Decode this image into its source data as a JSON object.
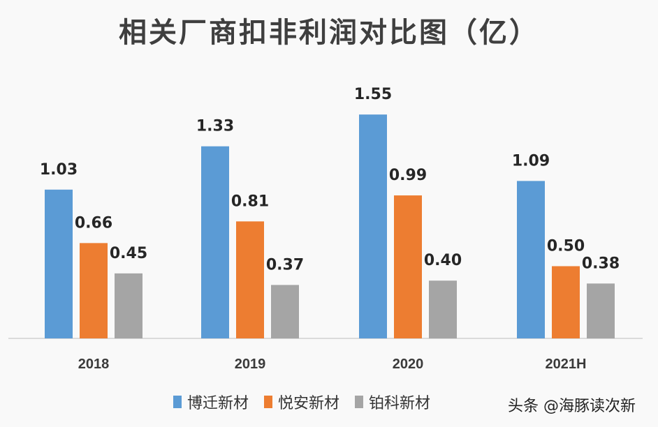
{
  "chart_data": {
    "type": "bar",
    "title": "相关厂商扣非利润对比图（亿）",
    "xlabel": "",
    "ylabel": "",
    "ylim": [
      0,
      1.6
    ],
    "grid": false,
    "legend": "bottom",
    "categories": [
      "2018",
      "2019",
      "2020",
      "2021H"
    ],
    "series": [
      {
        "name": "博迁新材",
        "color": "#5b9bd5",
        "values": [
          1.03,
          1.33,
          1.55,
          1.09
        ],
        "labels": [
          "1.03",
          "1.33",
          "1.55",
          "1.09"
        ]
      },
      {
        "name": "悦安新材",
        "color": "#ed7d31",
        "values": [
          0.66,
          0.81,
          0.99,
          0.5
        ],
        "labels": [
          "0.66",
          "0.81",
          "0.99",
          "0.50"
        ]
      },
      {
        "name": "铂科新材",
        "color": "#a5a5a5",
        "values": [
          0.45,
          0.37,
          0.4,
          0.38
        ],
        "labels": [
          "0.45",
          "0.37",
          "0.40",
          "0.38"
        ]
      }
    ]
  },
  "watermark": "头条 @海豚读次新"
}
